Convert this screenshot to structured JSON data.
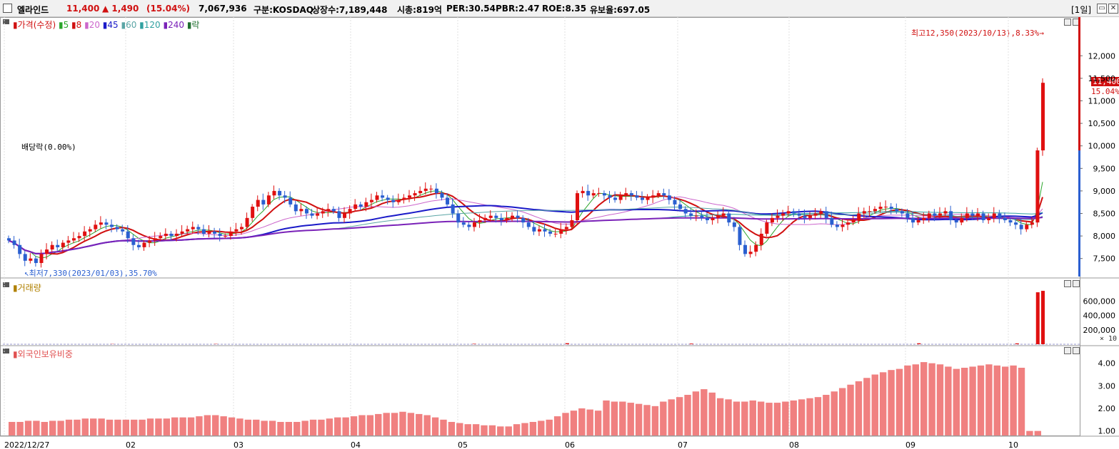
{
  "header": {
    "name": "엘라인드",
    "price": "11,400",
    "change": "▲ 1,490",
    "change_pct": "(15.04%)",
    "volume": "7,067,936",
    "market": "구분:KOSDAQ",
    "shares": "상장수:7,189,448",
    "mcap": "시총:819억",
    "per": "PER:30.54",
    "pbr": "PBR:2.47",
    "roe": "ROE:8.35",
    "reserve": "유보율:697.05",
    "period": "[1일]"
  },
  "legend": {
    "price_label": "가격(수정)",
    "mas": [
      {
        "label": "5",
        "color": "#2aa52a"
      },
      {
        "label": "8",
        "color": "#d01010"
      },
      {
        "label": "20",
        "color": "#cc66cc"
      },
      {
        "label": "45",
        "color": "#1a1ac8"
      },
      {
        "label": "60",
        "color": "#5aa5a5"
      },
      {
        "label": "120",
        "color": "#30a0a0"
      },
      {
        "label": "240",
        "color": "#7a22b8"
      },
      {
        "label": "락",
        "color": "#207030"
      }
    ],
    "volume_label": "거래량",
    "foreign_label": "외국인보유비중"
  },
  "annotations": {
    "high": "최고12,350(2023/10/13),8.33%",
    "low": "최저7,330(2023/01/03),35.70%",
    "dividend": "배당락(0.00%)",
    "last_price": "11,400",
    "last_pct": "15.04%",
    "vol_unit": "× 10"
  },
  "colors": {
    "up": "#e01010",
    "down": "#2a5fd0",
    "bg": "#ffffff",
    "grid": "#d8d8d8"
  },
  "chart_data": {
    "type": "candlestick",
    "x_ticks": [
      "2022/12/27",
      "02",
      "03",
      "04",
      "05",
      "06",
      "07",
      "08",
      "09",
      "10"
    ],
    "price_axis": {
      "ticks": [
        "12,000",
        "11,500",
        "11,000",
        "10,500",
        "10,000",
        "9,500",
        "9,000",
        "8,500",
        "8,000",
        "7,500"
      ],
      "ylim": [
        7100,
        12700
      ]
    },
    "volume_axis": {
      "ticks": [
        "600,000",
        "400,000",
        "200,000"
      ],
      "ylim": [
        0,
        800000
      ]
    },
    "foreign_axis": {
      "ticks": [
        "4.00",
        "3.00",
        "2.00",
        "1.00"
      ],
      "ylim": [
        0.8,
        4.4
      ]
    },
    "price_close": [
      7900,
      7800,
      7600,
      7450,
      7500,
      7400,
      7600,
      7700,
      7800,
      7750,
      7850,
      7900,
      7950,
      8000,
      8100,
      8150,
      8250,
      8300,
      8250,
      8200,
      8150,
      8100,
      7950,
      7800,
      7750,
      7850,
      7900,
      7950,
      8000,
      8050,
      8000,
      8050,
      8100,
      8150,
      8200,
      8150,
      8050,
      8100,
      8050,
      8000,
      8000,
      8100,
      8150,
      8200,
      8400,
      8650,
      8800,
      8700,
      8900,
      9000,
      8900,
      8850,
      8700,
      8550,
      8600,
      8500,
      8450,
      8500,
      8550,
      8600,
      8550,
      8400,
      8500,
      8600,
      8700,
      8650,
      8750,
      8800,
      8900,
      8850,
      8800,
      8750,
      8800,
      8850,
      8900,
      8950,
      9000,
      9050,
      9050,
      8950,
      8850,
      8700,
      8500,
      8300,
      8250,
      8200,
      8300,
      8350,
      8400,
      8450,
      8400,
      8350,
      8400,
      8450,
      8400,
      8300,
      8200,
      8100,
      8150,
      8100,
      8050,
      8050,
      8150,
      8200,
      8350,
      8950,
      9000,
      8900,
      8950,
      8950,
      8900,
      8850,
      8800,
      8900,
      8950,
      8900,
      8850,
      8800,
      8850,
      8900,
      8950,
      8900,
      8800,
      8700,
      8600,
      8500,
      8450,
      8450,
      8400,
      8350,
      8400,
      8450,
      8500,
      8300,
      8200,
      7800,
      7600,
      7650,
      7800,
      8050,
      8300,
      8400,
      8450,
      8500,
      8550,
      8500,
      8450,
      8400,
      8450,
      8500,
      8550,
      8400,
      8250,
      8200,
      8250,
      8300,
      8350,
      8500,
      8550,
      8550,
      8600,
      8650,
      8650,
      8600,
      8550,
      8500,
      8400,
      8300,
      8350,
      8400,
      8500,
      8450,
      8500,
      8550,
      8350,
      8300,
      8400,
      8500,
      8450,
      8500,
      8350,
      8400,
      8500,
      8400,
      8350,
      8300,
      8250,
      8150,
      8250,
      8300,
      9900,
      11400
    ],
    "volume_marks": [
      {
        "day": 0.1,
        "value": 3000
      },
      {
        "day": 0.2,
        "value": 4000
      },
      {
        "day": 0.45,
        "value": 6000
      },
      {
        "day": 0.54,
        "value": 14000
      },
      {
        "day": 0.66,
        "value": 9000
      },
      {
        "day": 0.88,
        "value": 13000
      },
      {
        "day": 0.975,
        "value": 12000
      },
      {
        "day": 0.995,
        "value": 720000
      },
      {
        "day": 1.0,
        "value": 740000
      }
    ],
    "foreign_ratio": [
      1.4,
      1.4,
      1.45,
      1.45,
      1.4,
      1.45,
      1.45,
      1.5,
      1.5,
      1.55,
      1.55,
      1.55,
      1.5,
      1.5,
      1.5,
      1.5,
      1.5,
      1.55,
      1.55,
      1.55,
      1.6,
      1.6,
      1.6,
      1.65,
      1.7,
      1.7,
      1.65,
      1.6,
      1.55,
      1.5,
      1.5,
      1.45,
      1.45,
      1.4,
      1.4,
      1.4,
      1.45,
      1.5,
      1.5,
      1.55,
      1.6,
      1.6,
      1.65,
      1.7,
      1.7,
      1.75,
      1.8,
      1.8,
      1.85,
      1.8,
      1.75,
      1.7,
      1.6,
      1.5,
      1.4,
      1.35,
      1.3,
      1.3,
      1.25,
      1.25,
      1.2,
      1.2,
      1.3,
      1.35,
      1.4,
      1.45,
      1.5,
      1.65,
      1.8,
      1.9,
      2.0,
      1.95,
      1.9,
      2.35,
      2.3,
      2.3,
      2.25,
      2.2,
      2.15,
      2.1,
      2.3,
      2.4,
      2.5,
      2.6,
      2.75,
      2.85,
      2.7,
      2.45,
      2.4,
      2.3,
      2.3,
      2.35,
      2.3,
      2.25,
      2.25,
      2.3,
      2.35,
      2.4,
      2.45,
      2.5,
      2.6,
      2.75,
      2.9,
      3.05,
      3.2,
      3.35,
      3.5,
      3.6,
      3.7,
      3.75,
      3.9,
      3.95,
      4.05,
      4.0,
      3.95,
      3.85,
      3.75,
      3.8,
      3.85,
      3.9,
      3.95,
      3.9,
      3.85,
      3.9,
      3.8,
      1.0,
      1.0
    ]
  }
}
